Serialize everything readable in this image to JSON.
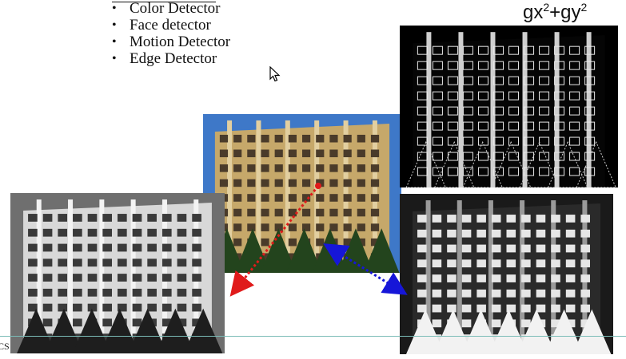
{
  "slide": {
    "bullets": [
      "Color Detector",
      "Face detector",
      "Motion Detector",
      "Edge Detector"
    ],
    "formula": {
      "gx": "gx",
      "gy": "gy",
      "plus": "+",
      "exp": "2"
    },
    "footer": "CS"
  },
  "images": {
    "center": "color-photo",
    "top_right": "edge-magnitude",
    "bottom_left": "grayscale",
    "bottom_right": "inverted"
  },
  "colors": {
    "red_arrow": "#e01b1b",
    "blue_arrow": "#1616d8",
    "rule": "#7bbcb7",
    "sky": "#3e78c8",
    "facade": "#c6a86a"
  }
}
